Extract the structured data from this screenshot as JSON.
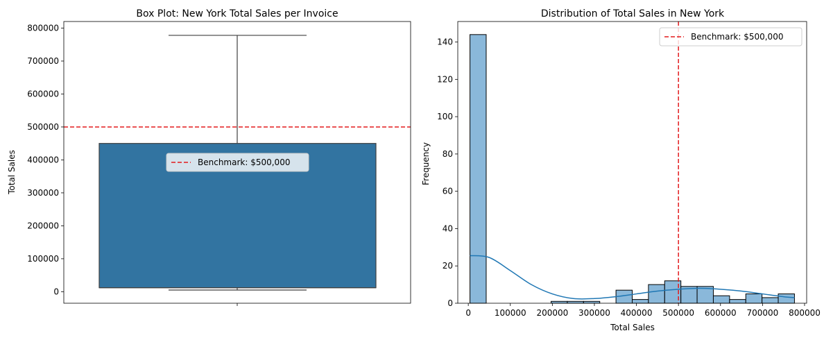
{
  "chart_data": [
    {
      "type": "box",
      "title": "Box Plot: New York Total Sales per Invoice",
      "xlabel": "",
      "ylabel": "Total Sales",
      "ylim": [
        -35000,
        820000
      ],
      "yticks": [
        0,
        100000,
        200000,
        300000,
        400000,
        500000,
        600000,
        700000,
        800000
      ],
      "ytick_labels": [
        "0",
        "100000",
        "200000",
        "300000",
        "400000",
        "500000",
        "600000",
        "700000",
        "800000"
      ],
      "box": {
        "whisker_low": 5000,
        "q1": 12000,
        "median": 12000,
        "q3": 450000,
        "whisker_high": 778000
      },
      "box_color": "#3274a1",
      "benchmark": {
        "value": 500000,
        "label": "Benchmark: $500,000",
        "color": "#e31a1c",
        "style": "dashed"
      },
      "legend_position": "upper-center"
    },
    {
      "type": "histogram",
      "title": "Distribution of Total Sales in New York",
      "xlabel": "Total Sales",
      "ylabel": "Frequency",
      "xlim": [
        -25000,
        805000
      ],
      "ylim": [
        0,
        151
      ],
      "xticks": [
        0,
        100000,
        200000,
        300000,
        400000,
        500000,
        600000,
        700000,
        800000
      ],
      "xtick_labels": [
        "0",
        "100000",
        "200000",
        "300000",
        "400000",
        "500000",
        "600000",
        "700000",
        "800000"
      ],
      "yticks": [
        0,
        20,
        40,
        60,
        80,
        100,
        120,
        140
      ],
      "ytick_labels": [
        "0",
        "20",
        "40",
        "60",
        "80",
        "100",
        "120",
        "140"
      ],
      "bin_edges": [
        4000,
        42600,
        81200,
        119800,
        158400,
        197000,
        235600,
        274200,
        312800,
        351400,
        390000,
        428600,
        467200,
        505800,
        544400,
        583000,
        621600,
        660200,
        698800,
        737400,
        776000
      ],
      "counts": [
        144,
        0,
        0,
        0,
        0,
        1,
        1,
        1,
        0,
        7,
        2,
        10,
        12,
        9,
        9,
        4,
        2,
        5,
        3,
        5
      ],
      "bar_color": "#8ab8da",
      "kde": {
        "color": "#1f77b4",
        "x": [
          4000,
          50000,
          100000,
          150000,
          200000,
          250000,
          300000,
          350000,
          400000,
          450000,
          500000,
          550000,
          600000,
          650000,
          700000,
          750000,
          776000
        ],
        "y": [
          25.5,
          24.5,
          17.5,
          10,
          5,
          2.5,
          2.5,
          3.5,
          5,
          6.5,
          7.5,
          8,
          7.5,
          6.5,
          5,
          3.5,
          3
        ]
      },
      "benchmark": {
        "value": 500000,
        "label": "Benchmark: $500,000",
        "color": "#e31a1c",
        "style": "dashed"
      },
      "legend_position": "upper-right"
    }
  ]
}
